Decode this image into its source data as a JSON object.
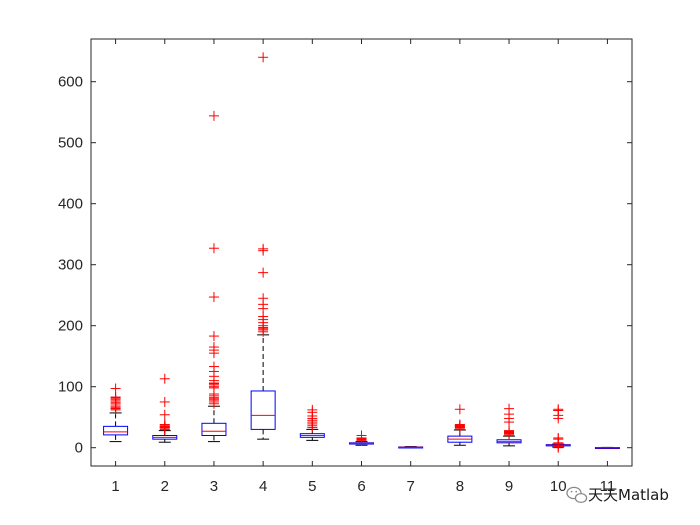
{
  "chart_data": {
    "type": "box",
    "title": "",
    "xlabel": "",
    "ylabel": "",
    "categories": [
      "1",
      "2",
      "3",
      "4",
      "5",
      "6",
      "7",
      "8",
      "9",
      "10",
      "11"
    ],
    "ylim": [
      -30,
      670
    ],
    "xlim": [
      0.5,
      11.5
    ],
    "yticks": [
      0,
      100,
      200,
      300,
      400,
      500,
      600
    ],
    "grid": false,
    "colors": {
      "box": "#0000ff",
      "median": "#ff0000",
      "whisker": "#000000",
      "outlier": "#ff0000",
      "axis": "#262626"
    },
    "boxes": [
      {
        "label": "1",
        "q1": 21,
        "median": 26,
        "q3": 35,
        "whisker_low": 10,
        "whisker_high": 57,
        "outliers": [
          62,
          64,
          65,
          67,
          70,
          73,
          75,
          78,
          80,
          82,
          83,
          97
        ]
      },
      {
        "label": "2",
        "q1": 14,
        "median": 17,
        "q3": 20,
        "whisker_low": 9,
        "whisker_high": 28,
        "outliers": [
          30,
          32,
          33,
          34,
          35,
          36,
          38,
          54,
          75,
          113
        ]
      },
      {
        "label": "3",
        "q1": 20,
        "median": 27,
        "q3": 40,
        "whisker_low": 10,
        "whisker_high": 68,
        "outliers": [
          72,
          75,
          78,
          80,
          82,
          85,
          88,
          98,
          100,
          103,
          105,
          106,
          110,
          117,
          125,
          133,
          155,
          160,
          165,
          183,
          247,
          327,
          544
        ]
      },
      {
        "label": "4",
        "q1": 30,
        "median": 53,
        "q3": 93,
        "whisker_low": 14,
        "whisker_high": 185,
        "outliers": [
          190,
          193,
          195,
          197,
          200,
          205,
          210,
          215,
          228,
          235,
          245,
          287,
          323,
          326,
          640
        ]
      },
      {
        "label": "5",
        "q1": 17,
        "median": 20,
        "q3": 23,
        "whisker_low": 12,
        "whisker_high": 30,
        "outliers": [
          33,
          36,
          39,
          42,
          45,
          48,
          52,
          58,
          62
        ]
      },
      {
        "label": "6",
        "q1": 6,
        "median": 7,
        "q3": 8,
        "whisker_low": 4,
        "whisker_high": 10,
        "outliers": [
          12,
          13,
          14,
          15,
          16,
          20
        ]
      },
      {
        "label": "7",
        "q1": 0.5,
        "median": 0.8,
        "q3": 1.2,
        "whisker_low": 0.2,
        "whisker_high": 1.8,
        "outliers": []
      },
      {
        "label": "8",
        "q1": 9,
        "median": 14,
        "q3": 19,
        "whisker_low": 4,
        "whisker_high": 29,
        "outliers": [
          31,
          33,
          34,
          35,
          36,
          37,
          38,
          63
        ]
      },
      {
        "label": "9",
        "q1": 8,
        "median": 10,
        "q3": 13,
        "whisker_low": 3,
        "whisker_high": 19,
        "outliers": [
          21,
          23,
          24,
          25,
          26,
          27,
          28,
          42,
          48,
          55,
          64
        ]
      },
      {
        "label": "10",
        "q1": 3,
        "median": 4,
        "q3": 5,
        "whisker_low": 1,
        "whisker_high": 6,
        "outliers": [
          0,
          2,
          6.5,
          8,
          14,
          16,
          48,
          53,
          61,
          63
        ]
      },
      {
        "label": "11",
        "q1": 0,
        "median": 0,
        "q3": 0.3,
        "whisker_low": 0,
        "whisker_high": 0.5,
        "outliers": []
      }
    ]
  },
  "watermark": {
    "text": "天天Matlab",
    "icon": "wechat-icon"
  }
}
